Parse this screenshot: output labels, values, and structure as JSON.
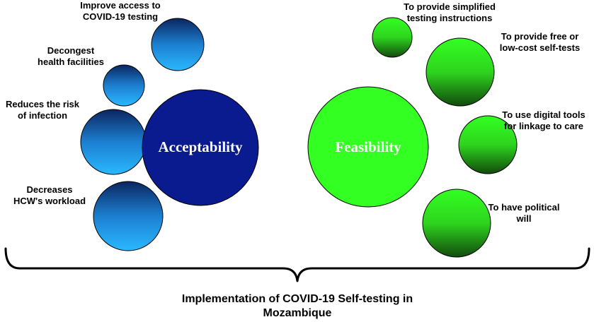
{
  "acceptability": {
    "title": "Acceptability",
    "color": "#0a1a8f",
    "factors": [
      {
        "line1": "Improve access to",
        "line2": "COVID-19 testing"
      },
      {
        "line1": "Decongest",
        "line2": "health facilities"
      },
      {
        "line1": "Reduces the risk",
        "line2": "of infection"
      },
      {
        "line1": "Decreases",
        "line2": "HCW's workload"
      }
    ]
  },
  "feasibility": {
    "title": "Feasibility",
    "color": "#33ff22",
    "factors": [
      {
        "line1": "To provide simplified",
        "line2": "testing instructions"
      },
      {
        "line1": "To provide free or",
        "line2": "low-cost self-tests"
      },
      {
        "line1": "To use digital tools",
        "line2": "for linkage to care"
      },
      {
        "line1": "To have political",
        "line2": "will"
      }
    ]
  },
  "footer": {
    "line1": "Implementation of COVID-19 Self-testing in",
    "line2": "Mozambique"
  }
}
